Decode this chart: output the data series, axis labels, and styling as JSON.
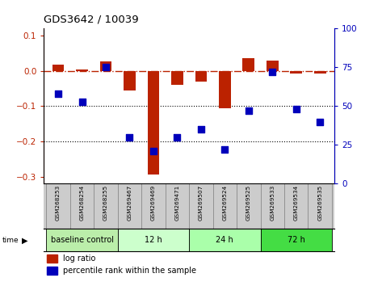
{
  "title": "GDS3642 / 10039",
  "samples": [
    "GSM268253",
    "GSM268254",
    "GSM268255",
    "GSM269467",
    "GSM269469",
    "GSM269471",
    "GSM269507",
    "GSM269524",
    "GSM269525",
    "GSM269533",
    "GSM269534",
    "GSM269535"
  ],
  "log_ratio": [
    0.018,
    0.005,
    0.028,
    -0.055,
    -0.295,
    -0.04,
    -0.03,
    -0.105,
    0.035,
    0.03,
    -0.008,
    -0.008
  ],
  "percentile_rank": [
    58,
    53,
    75,
    30,
    21,
    30,
    35,
    22,
    47,
    72,
    48,
    40
  ],
  "group_defs": [
    {
      "label": "baseline control",
      "xi": 0,
      "xf": 3,
      "color": "#bbeeaa"
    },
    {
      "label": "12 h",
      "xi": 3,
      "xf": 6,
      "color": "#ccffcc"
    },
    {
      "label": "24 h",
      "xi": 6,
      "xf": 9,
      "color": "#aaffaa"
    },
    {
      "label": "72 h",
      "xi": 9,
      "xf": 12,
      "color": "#44dd44"
    }
  ],
  "ylim_left": [
    -0.32,
    0.12
  ],
  "ylim_right": [
    0,
    100
  ],
  "yticks_left": [
    -0.3,
    -0.2,
    -0.1,
    0.0,
    0.1
  ],
  "yticks_right": [
    0,
    25,
    50,
    75,
    100
  ],
  "bar_color": "#bb2200",
  "dot_color": "#0000bb",
  "hline_color": "#bb2200",
  "dotted_lines": [
    -0.1,
    -0.2
  ],
  "bar_width": 0.5,
  "dot_size": 40,
  "sample_box_color": "#cccccc",
  "sample_box_border": "#888888"
}
